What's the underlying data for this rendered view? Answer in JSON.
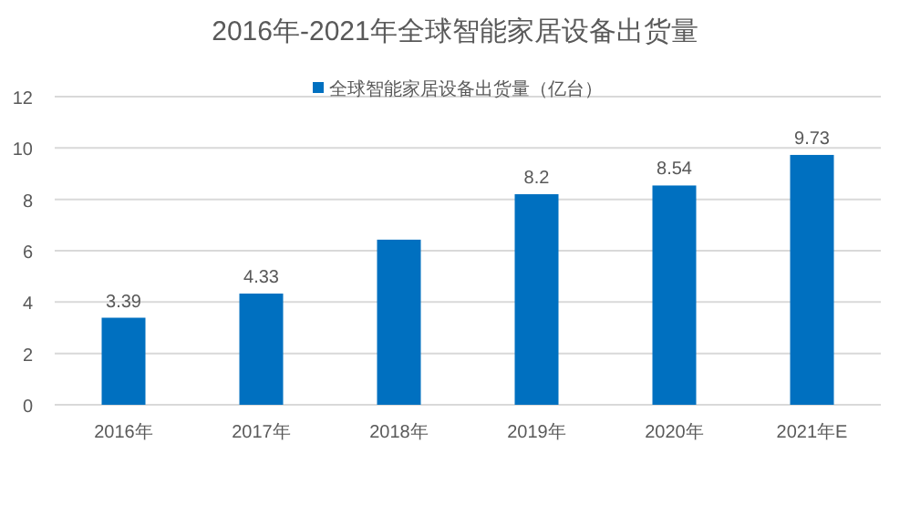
{
  "chart_data": {
    "type": "bar",
    "title": "2016年-2021年全球智能家居设备出货量",
    "categories": [
      "2016年",
      "2017年",
      "2018年",
      "2019年",
      "2020年",
      "2021年E"
    ],
    "series": [
      {
        "name": "全球智能家居设备出货量（亿台）",
        "color": "#0070c0",
        "values": [
          3.39,
          4.33,
          6.43,
          8.2,
          8.54,
          9.73
        ]
      }
    ],
    "value_labels": [
      "3.39",
      "4.33",
      null,
      "8.2",
      "8.54",
      "9.73"
    ],
    "ylim": [
      0,
      12
    ],
    "yticks": [
      0,
      2,
      4,
      6,
      8,
      10,
      12
    ],
    "grid": "y",
    "legend": "top"
  }
}
